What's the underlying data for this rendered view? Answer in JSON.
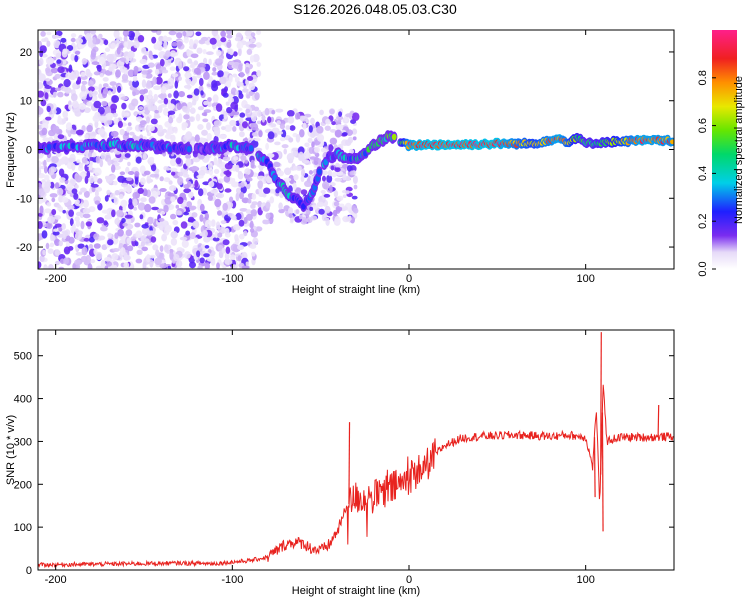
{
  "title": "S126.2026.048.05.03.C30",
  "colors": {
    "snr_line": "#e8231f",
    "spectrogram_low": "#dcd0f5",
    "spectrogram_mid": "#6a28e8",
    "frame": "#000000"
  },
  "chart_data": [
    {
      "type": "heatmap",
      "name": "spectrogram",
      "title": "S126.2026.048.05.03.C30",
      "xlabel": "Height of straight line (km)",
      "ylabel": "Frequency (Hz)",
      "xlim": [
        -210,
        150
      ],
      "ylim": [
        -24.5,
        24.5
      ],
      "xticks": [
        -200,
        -100,
        0,
        100
      ],
      "xtick_labels": [
        "-200",
        "-100",
        "0",
        "100"
      ],
      "yticks": [
        -20,
        -10,
        0,
        10,
        20
      ],
      "ytick_labels": [
        "-20",
        "-10",
        "0",
        "10",
        "20"
      ],
      "ridge": {
        "x": [
          -210,
          -190,
          -170,
          -150,
          -130,
          -115,
          -100,
          -90,
          -80,
          -75,
          -70,
          -65,
          -60,
          -55,
          -50,
          -45,
          -40,
          -35,
          -30,
          -25,
          -20,
          -15,
          -10,
          -5,
          0,
          10,
          30,
          50,
          70,
          80,
          85,
          90,
          95,
          100,
          110,
          130,
          150
        ],
        "freq": [
          0.2,
          0.5,
          1.0,
          0.8,
          0.3,
          0.1,
          0.8,
          0.3,
          -3.0,
          -6.0,
          -8.5,
          -10.0,
          -11.5,
          -9.0,
          -4.0,
          -1.5,
          -1.0,
          -2.0,
          -1.8,
          -0.5,
          0.8,
          2.0,
          2.8,
          1.5,
          0.8,
          1.0,
          1.0,
          1.2,
          1.2,
          2.0,
          2.2,
          1.5,
          2.5,
          1.2,
          1.5,
          1.8,
          1.8
        ],
        "amp": [
          0.25,
          0.3,
          0.3,
          0.3,
          0.25,
          0.2,
          0.3,
          0.3,
          0.3,
          0.3,
          0.35,
          0.35,
          0.3,
          0.35,
          0.3,
          0.3,
          0.3,
          0.3,
          0.35,
          0.4,
          0.45,
          0.5,
          0.55,
          0.5,
          0.95,
          1.0,
          1.0,
          1.0,
          0.75,
          0.9,
          0.95,
          0.8,
          0.6,
          0.5,
          0.55,
          0.95,
          0.9
        ]
      },
      "noise_regions": [
        {
          "x_range": [
            -210,
            -85
          ],
          "freq_range": [
            -24.5,
            24.5
          ],
          "amp": 0.08
        },
        {
          "x_range": [
            -85,
            -30
          ],
          "freq_range": [
            -15,
            8
          ],
          "amp": 0.1
        }
      ],
      "colorbar": {
        "label": "Normalized spectral amplitude",
        "range": [
          0.0,
          1.0
        ],
        "ticks": [
          0.0,
          0.2,
          0.4,
          0.6,
          0.8
        ],
        "tick_labels": [
          "0.0",
          "0.2",
          "0.4",
          "0.6",
          "0.8"
        ]
      }
    },
    {
      "type": "line",
      "name": "snr",
      "title": "",
      "xlabel": "Height of straight line (km)",
      "ylabel": "SNR (10 * v/v)",
      "xlim": [
        -210,
        150
      ],
      "ylim": [
        0,
        560
      ],
      "xticks": [
        -200,
        -100,
        0,
        100
      ],
      "xtick_labels": [
        "-200",
        "-100",
        "0",
        "100"
      ],
      "yticks": [
        0,
        100,
        200,
        300,
        400,
        500
      ],
      "ytick_labels": [
        "0",
        "100",
        "200",
        "300",
        "400",
        "500"
      ],
      "series": [
        {
          "name": "SNR",
          "x": [
            -210,
            -190,
            -170,
            -150,
            -130,
            -110,
            -90,
            -80,
            -75,
            -70,
            -65,
            -60,
            -55,
            -50,
            -45,
            -40,
            -35,
            -30,
            -25,
            -20,
            -15,
            -10,
            -5,
            0,
            5,
            10,
            15,
            20,
            30,
            40,
            60,
            80,
            90,
            100,
            104,
            106,
            108,
            110,
            112,
            115,
            120,
            140,
            150
          ],
          "y": [
            12,
            13,
            14,
            15,
            16,
            15,
            22,
            30,
            45,
            60,
            65,
            62,
            50,
            45,
            60,
            95,
            150,
            170,
            165,
            170,
            180,
            190,
            200,
            215,
            230,
            245,
            270,
            290,
            308,
            312,
            315,
            312,
            315,
            310,
            240,
            380,
            150,
            440,
            300,
            305,
            310,
            310,
            312
          ]
        }
      ],
      "spikes": [
        {
          "x": 108.5,
          "y": 555
        },
        {
          "x": 109.5,
          "y": 90
        },
        {
          "x": 105,
          "y": 170
        },
        {
          "x": 141,
          "y": 385
        },
        {
          "x": -34,
          "y": 345
        }
      ]
    }
  ]
}
